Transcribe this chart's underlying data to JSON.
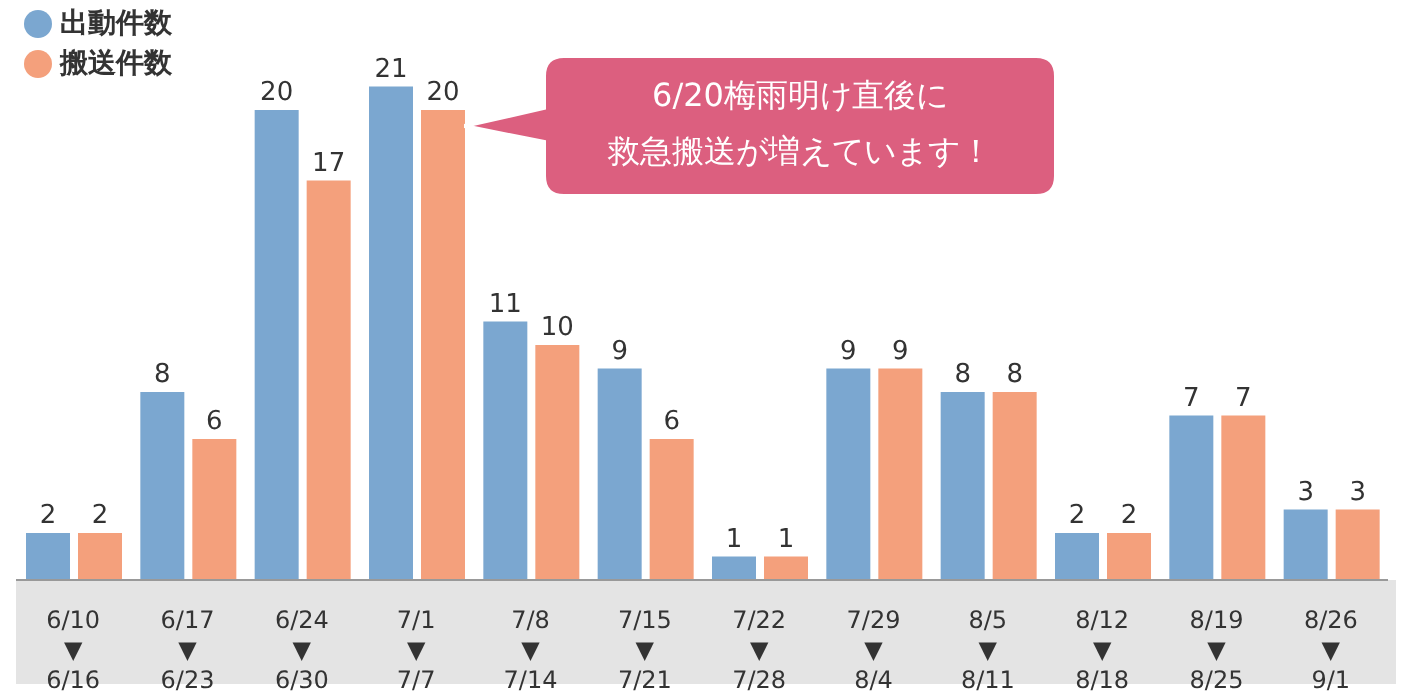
{
  "chart_data": {
    "type": "bar",
    "categories": [
      "6/10\n▼\n6/16",
      "6/17\n▼\n6/23",
      "6/24\n▼\n6/30",
      "7/1\n▼\n7/7",
      "7/8\n▼\n7/14",
      "7/15\n▼\n7/21",
      "7/22\n▼\n7/28",
      "7/29\n▼\n8/4",
      "8/5\n▼\n8/11",
      "8/12\n▼\n8/18",
      "8/19\n▼\n8/25",
      "8/26\n▼\n9/1"
    ],
    "series": [
      {
        "name": "出動件数",
        "color": "#7ba7d0",
        "values": [
          2,
          8,
          20,
          21,
          11,
          9,
          1,
          9,
          8,
          2,
          7,
          3
        ]
      },
      {
        "name": "搬送件数",
        "color": "#f4a07c",
        "values": [
          2,
          6,
          17,
          20,
          10,
          6,
          1,
          9,
          8,
          2,
          7,
          3
        ]
      }
    ],
    "tick_labels": "x",
    "legend": "top left",
    "data_labels": true,
    "annotations": [
      "6/20梅雨明け直後に救急搬送が増えています！"
    ]
  }
}
